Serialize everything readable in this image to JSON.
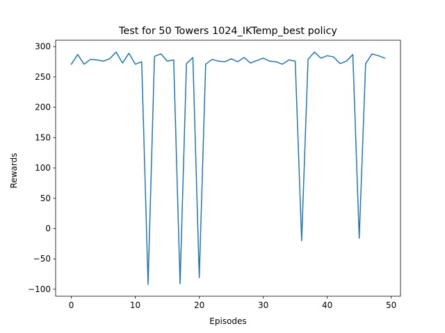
{
  "chart_data": {
    "type": "line",
    "title": "Test for 50 Towers 1024_IKTemp_best policy",
    "xlabel": "Episodes",
    "ylabel": "Rewards",
    "xlim": [
      -2.45,
      51.45
    ],
    "ylim": [
      -111.5,
      310.5
    ],
    "xticks": [
      0,
      10,
      20,
      30,
      40,
      50
    ],
    "yticks": [
      -100,
      -50,
      0,
      50,
      100,
      150,
      200,
      250,
      300
    ],
    "grid": false,
    "legend": "none",
    "line_color": "#1f77b4",
    "series": [
      {
        "x": [
          0,
          1,
          2,
          3,
          4,
          5,
          6,
          7,
          8,
          9,
          10,
          11,
          12,
          13,
          14,
          15,
          16,
          17,
          18,
          19,
          20,
          21,
          22,
          23,
          24,
          25,
          26,
          27,
          28,
          29,
          30,
          31,
          32,
          33,
          34,
          35,
          36,
          37,
          38,
          39,
          40,
          41,
          42,
          43,
          44,
          45,
          46,
          47,
          48,
          49
        ],
        "values": [
          271,
          287,
          271,
          279,
          278,
          276,
          280,
          291,
          273,
          289,
          271,
          275,
          -92,
          284,
          288,
          276,
          278,
          -91,
          272,
          282,
          -81,
          271,
          279,
          276,
          275,
          280,
          275,
          282,
          273,
          277,
          281,
          276,
          275,
          271,
          278,
          276,
          -20,
          279,
          291,
          281,
          285,
          283,
          272,
          276,
          287,
          -16,
          272,
          288,
          285,
          281
        ]
      }
    ]
  }
}
